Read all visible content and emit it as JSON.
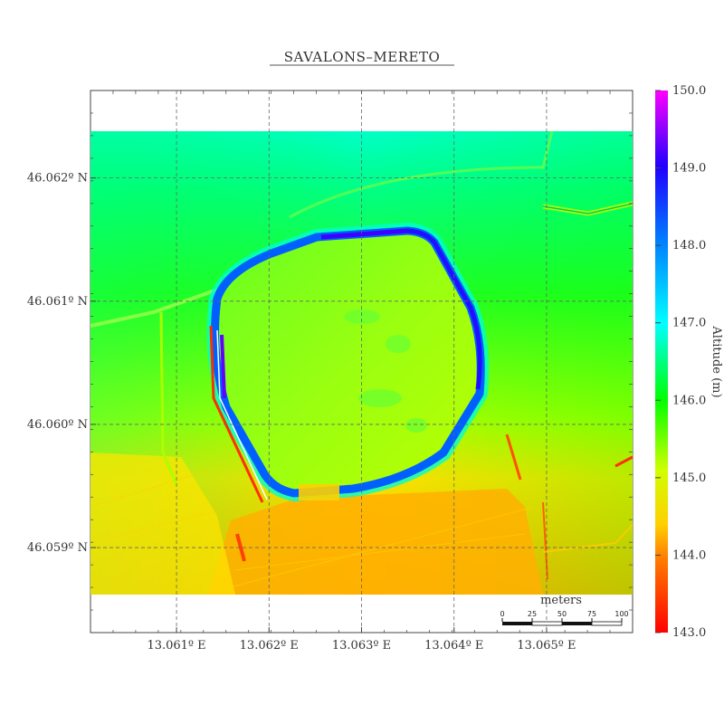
{
  "title": "SAVALONS–MERETO",
  "colors": {
    "low": "#ff0000",
    "mid_low": "#ffd000",
    "mid": "#00ff00",
    "mid_high": "#00ffff",
    "high": "#0000ff",
    "top": "#ff00ff"
  },
  "axes": {
    "x_ticks": [
      {
        "label": "13.061º E",
        "value": 13.061
      },
      {
        "label": "13.062º E",
        "value": 13.062
      },
      {
        "label": "13.063º E",
        "value": 13.063
      },
      {
        "label": "13.064º E",
        "value": 13.064
      },
      {
        "label": "13.065º E",
        "value": 13.065
      }
    ],
    "y_ticks": [
      {
        "label": "46.062º N",
        "value": 46.062
      },
      {
        "label": "46.061º N",
        "value": 46.061
      },
      {
        "label": "46.060º N",
        "value": 46.06
      },
      {
        "label": "46.059º N",
        "value": 46.059
      }
    ],
    "x_range": [
      13.06007,
      13.06593
    ],
    "y_range": [
      46.05831,
      46.06271
    ]
  },
  "colorbar": {
    "label": "Altitude (m)",
    "min": 143.0,
    "max": 150.0,
    "ticks": [
      "143.0",
      "144.0",
      "145.0",
      "146.0",
      "147.0",
      "148.0",
      "149.0",
      "150.0"
    ]
  },
  "scalebar": {
    "label": "meters",
    "ticks": [
      "0",
      "25",
      "50",
      "75",
      "100"
    ]
  }
}
